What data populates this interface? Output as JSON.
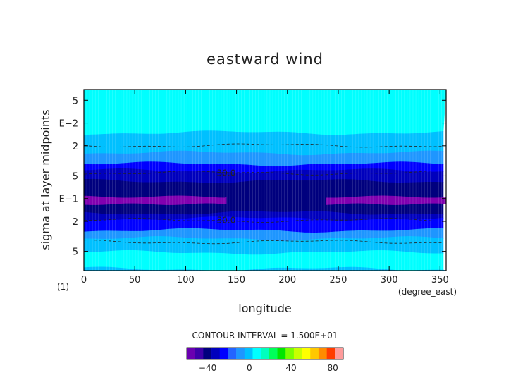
{
  "chart_data": {
    "type": "heatmap",
    "title": "eastward wind",
    "xlabel": "longitude",
    "ylabel": "sigma at layer midpoints",
    "x_unit": "(degree_east)",
    "corner_label": "(1)",
    "x_ticks": [
      "0",
      "50",
      "100",
      "150",
      "200",
      "250",
      "300",
      "350"
    ],
    "xlim": [
      0,
      356
    ],
    "y_ticks": [
      "5",
      "E−2",
      "2",
      "5",
      "E−1",
      "2",
      "5"
    ],
    "y_tick_values": [
      0.005,
      0.01,
      0.02,
      0.05,
      0.1,
      0.2,
      0.5
    ],
    "ylim": [
      0.0036,
      0.9
    ],
    "y_scale": "log",
    "contour_labels": [
      {
        "text": "30.0",
        "x": 133,
        "y": 0.0458
      },
      {
        "text": "30.0",
        "x": 133,
        "y": 0.194
      }
    ],
    "contour_interval_label": "CONTOUR INTERVAL = 1.500E+01",
    "colorbar": {
      "colors": [
        "#6a00b0",
        "#3c00a8",
        "#00007e",
        "#0000bd",
        "#0000ff",
        "#2464ff",
        "#1e96ff",
        "#00c0ff",
        "#00ffff",
        "#00ffbe",
        "#00ff5a",
        "#00e600",
        "#78ff00",
        "#c8ff00",
        "#ffff00",
        "#ffc800",
        "#ff8c00",
        "#ff3c00",
        "#ff9b9b"
      ],
      "tick_labels": [
        "−40",
        "0",
        "40",
        "80"
      ],
      "tick_values": [
        -40,
        0,
        40,
        80
      ],
      "range": [
        -60,
        90
      ]
    },
    "bands": [
      {
        "y_top": 0.0036,
        "y_bottom": 0.0135,
        "color": "#00ffff"
      },
      {
        "y_top": 0.0135,
        "y_bottom": 0.025,
        "color": "#00c0ff"
      },
      {
        "y_top": 0.025,
        "y_bottom": 0.035,
        "color": "#1e96ff"
      },
      {
        "y_top": 0.035,
        "y_bottom": 0.043,
        "color": "#0000ff"
      },
      {
        "y_top": 0.043,
        "y_bottom": 0.059,
        "color": "#0000bd"
      },
      {
        "y_top": 0.059,
        "y_bottom": 0.155,
        "color": "#00007e"
      },
      {
        "y_top": 0.155,
        "y_bottom": 0.185,
        "color": "#0000bd"
      },
      {
        "y_top": 0.185,
        "y_bottom": 0.265,
        "color": "#0000ff"
      },
      {
        "y_top": 0.265,
        "y_bottom": 0.34,
        "color": "#1e96ff"
      },
      {
        "y_top": 0.34,
        "y_bottom": 0.52,
        "color": "#00c0ff"
      },
      {
        "y_top": 0.52,
        "y_bottom": 0.86,
        "color": "#00ffff"
      },
      {
        "y_top": 0.86,
        "y_bottom": 0.9,
        "color": "#00c0ff"
      }
    ],
    "dashed_contours": [
      {
        "y": 0.0198
      },
      {
        "y": 0.0458
      },
      {
        "y": 0.194
      },
      {
        "y": 0.375
      }
    ],
    "jet_cores": [
      {
        "x": [
          0,
          140
        ],
        "y_top": 0.095,
        "y_bottom": 0.118,
        "color": "#8000b0"
      },
      {
        "x": [
          238,
          356
        ],
        "y_top": 0.095,
        "y_bottom": 0.118,
        "color": "#8000b0"
      }
    ]
  }
}
